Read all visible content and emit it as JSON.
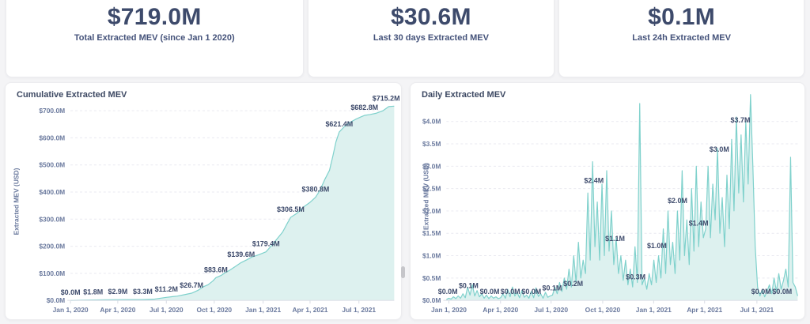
{
  "stats": [
    {
      "value": "$719.0M",
      "label": "Total Extracted MEV (since Jan 1 2020)"
    },
    {
      "value": "$30.6M",
      "label": "Last 30 days Extracted MEV"
    },
    {
      "value": "$0.1M",
      "label": "Last 24h Extracted MEV"
    }
  ],
  "colors": {
    "accent_line": "#7fd1cc",
    "accent_fill": "#ddf1ef",
    "text_dark": "#3d4a6b",
    "text_axis": "#6b7a9e",
    "grid": "#e9e9f0",
    "axis_line": "#d9dce5",
    "card_bg": "#ffffff",
    "page_bg": "#f4f4f6"
  },
  "chart_data": [
    {
      "type": "area",
      "title": "Cumulative Extracted MEV",
      "ylabel": "Extracted MEV (USD)",
      "xlabel": "",
      "grid": true,
      "ymax": 730,
      "yticks": [
        {
          "v": 0,
          "label": "$0.0M"
        },
        {
          "v": 100,
          "label": "$100.0M"
        },
        {
          "v": 200,
          "label": "$200.0M"
        },
        {
          "v": 300,
          "label": "$300.0M"
        },
        {
          "v": 400,
          "label": "$400.0M"
        },
        {
          "v": 500,
          "label": "$500.0M"
        },
        {
          "v": 600,
          "label": "$600.0M"
        },
        {
          "v": 700,
          "label": "$700.0M"
        }
      ],
      "xticks": [
        {
          "t": 0.0,
          "label": "Jan 1, 2020"
        },
        {
          "t": 0.146,
          "label": "Apr 1, 2020"
        },
        {
          "t": 0.296,
          "label": "Jul 1, 2020"
        },
        {
          "t": 0.444,
          "label": "Oct 1, 2020"
        },
        {
          "t": 0.595,
          "label": "Jan 1, 2021"
        },
        {
          "t": 0.74,
          "label": "Apr 1, 2021"
        },
        {
          "t": 0.891,
          "label": "Jul 1, 2021"
        }
      ],
      "series": [
        [
          0,
          0
        ],
        [
          0.03,
          0.8
        ],
        [
          0.07,
          1.8
        ],
        [
          0.11,
          2.4
        ],
        [
          0.146,
          2.9
        ],
        [
          0.18,
          3.1
        ],
        [
          0.223,
          3.3
        ],
        [
          0.26,
          5
        ],
        [
          0.296,
          11.2
        ],
        [
          0.315,
          14
        ],
        [
          0.33,
          16
        ],
        [
          0.355,
          22
        ],
        [
          0.374,
          26.7
        ],
        [
          0.395,
          38
        ],
        [
          0.41,
          50
        ],
        [
          0.425,
          58
        ],
        [
          0.44,
          72
        ],
        [
          0.449,
          83.6
        ],
        [
          0.465,
          92
        ],
        [
          0.48,
          104
        ],
        [
          0.49,
          110
        ],
        [
          0.51,
          126
        ],
        [
          0.527,
          139.6
        ],
        [
          0.545,
          150
        ],
        [
          0.56,
          160
        ],
        [
          0.58,
          168
        ],
        [
          0.604,
          179.4
        ],
        [
          0.625,
          208
        ],
        [
          0.64,
          230
        ],
        [
          0.655,
          252
        ],
        [
          0.67,
          285
        ],
        [
          0.68,
          306.5
        ],
        [
          0.7,
          322
        ],
        [
          0.72,
          345
        ],
        [
          0.74,
          362
        ],
        [
          0.757,
          380.8
        ],
        [
          0.77,
          405
        ],
        [
          0.785,
          445
        ],
        [
          0.8,
          480
        ],
        [
          0.81,
          530
        ],
        [
          0.82,
          585
        ],
        [
          0.83,
          621.4
        ],
        [
          0.845,
          640
        ],
        [
          0.86,
          655
        ],
        [
          0.88,
          668
        ],
        [
          0.895,
          676
        ],
        [
          0.908,
          682.8
        ],
        [
          0.925,
          686
        ],
        [
          0.945,
          691
        ],
        [
          0.965,
          700
        ],
        [
          0.983,
          715.2
        ],
        [
          1,
          717
        ]
      ],
      "point_labels": [
        [
          0.0,
          "$0.0M",
          0
        ],
        [
          0.07,
          "$1.8M",
          2
        ],
        [
          0.146,
          "$2.9M",
          3
        ],
        [
          0.223,
          "$3.3M",
          3
        ],
        [
          0.296,
          "$11.2M",
          12
        ],
        [
          0.374,
          "$26.7M",
          27
        ],
        [
          0.449,
          "$83.6M",
          84
        ],
        [
          0.527,
          "$139.6M",
          140
        ],
        [
          0.604,
          "$179.4M",
          180
        ],
        [
          0.68,
          "$306.5M",
          307
        ],
        [
          0.757,
          "$380.8M",
          381
        ],
        [
          0.83,
          "$621.4M",
          622
        ],
        [
          0.908,
          "$682.8M",
          683
        ],
        [
          0.975,
          "$715.2M",
          716
        ]
      ]
    },
    {
      "type": "area",
      "title": "Daily Extracted MEV",
      "ylabel": "Extracted MEV (USD)",
      "xlabel": "",
      "grid": true,
      "ymax": 4.65,
      "yticks": [
        {
          "v": 0,
          "label": "$0.0M"
        },
        {
          "v": 0.5,
          "label": "$0.5M"
        },
        {
          "v": 1.0,
          "label": "$1.0M"
        },
        {
          "v": 1.5,
          "label": "$1.5M"
        },
        {
          "v": 2.0,
          "label": "$2.0M"
        },
        {
          "v": 2.5,
          "label": "$2.5M"
        },
        {
          "v": 3.0,
          "label": "$3.0M"
        },
        {
          "v": 3.5,
          "label": "$3.5M"
        },
        {
          "v": 4.0,
          "label": "$4.0M"
        }
      ],
      "xticks": [
        {
          "t": 0.007,
          "label": "Jan 1, 2020"
        },
        {
          "t": 0.154,
          "label": "Apr 1, 2020"
        },
        {
          "t": 0.298,
          "label": "Jul 1, 2020"
        },
        {
          "t": 0.445,
          "label": "Oct 1, 2020"
        },
        {
          "t": 0.59,
          "label": "Jan 1, 2021"
        },
        {
          "t": 0.735,
          "label": "Apr 1, 2021"
        },
        {
          "t": 0.884,
          "label": "Jul 1, 2021"
        }
      ],
      "values": [
        0.02,
        0.05,
        0.03,
        0.08,
        0.04,
        0.1,
        0.05,
        0.15,
        0.06,
        0.3,
        0.12,
        0.35,
        0.1,
        0.22,
        0.08,
        0.15,
        0.05,
        0.12,
        0.04,
        0.1,
        0.05,
        0.08,
        0.04,
        0.06,
        0.15,
        0.05,
        0.25,
        0.08,
        0.3,
        0.1,
        0.18,
        0.06,
        0.22,
        0.07,
        0.12,
        0.05,
        0.2,
        0.06,
        0.28,
        0.09,
        0.15,
        0.05,
        0.18,
        0.07,
        0.1,
        0.12,
        0.3,
        0.15,
        0.4,
        0.2,
        0.5,
        0.25,
        0.7,
        0.3,
        1.0,
        0.4,
        1.3,
        0.5,
        0.9,
        0.6,
        2.4,
        0.9,
        3.1,
        1.2,
        2.2,
        0.9,
        2.6,
        1.0,
        2.9,
        1.1,
        2.0,
        0.8,
        1.4,
        0.6,
        1.0,
        0.45,
        0.9,
        0.35,
        0.7,
        0.3,
        1.2,
        0.4,
        4.4,
        0.35,
        0.5,
        0.25,
        0.6,
        0.35,
        0.9,
        0.4,
        1.0,
        0.5,
        1.6,
        0.6,
        2.0,
        0.8,
        1.3,
        0.6,
        2.0,
        0.9,
        2.9,
        1.0,
        1.8,
        0.8,
        2.5,
        1.1,
        3.0,
        1.2,
        2.2,
        1.4,
        1.6,
        3.0,
        1.4,
        2.6,
        1.8,
        3.4,
        1.5,
        2.3,
        1.2,
        2.8,
        1.6,
        3.6,
        2.0,
        4.1,
        2.4,
        3.7,
        2.2,
        4.0,
        2.6,
        4.6,
        3.0,
        1.2,
        0.3,
        0.1,
        0.25,
        0.08,
        0.2,
        0.35,
        0.15,
        0.5,
        0.2,
        0.6,
        0.25,
        0.45,
        0.7,
        0.3,
        3.2,
        0.4,
        0.3,
        0.1
      ],
      "point_labels": [
        [
          0.004,
          "$0.0M",
          0.02
        ],
        [
          0.063,
          "$0.1M",
          0.15
        ],
        [
          0.123,
          "$0.0M",
          0.02
        ],
        [
          0.182,
          "$0.0M",
          0.02
        ],
        [
          0.242,
          "$0.0M",
          0.02
        ],
        [
          0.301,
          "$0.1M",
          0.1
        ],
        [
          0.361,
          "$0.2M",
          0.2
        ],
        [
          0.42,
          "$2.4M",
          2.5
        ],
        [
          0.48,
          "$1.1M",
          1.2
        ],
        [
          0.539,
          "$0.3M",
          0.35
        ],
        [
          0.599,
          "$1.0M",
          1.05
        ],
        [
          0.658,
          "$2.0M",
          2.05
        ],
        [
          0.718,
          "$1.4M",
          1.55
        ],
        [
          0.777,
          "$3.0M",
          3.2
        ],
        [
          0.837,
          "$3.7M",
          3.85
        ],
        [
          0.896,
          "$0.0M",
          0.02
        ],
        [
          0.956,
          "$0.0M",
          0.02
        ]
      ]
    }
  ]
}
